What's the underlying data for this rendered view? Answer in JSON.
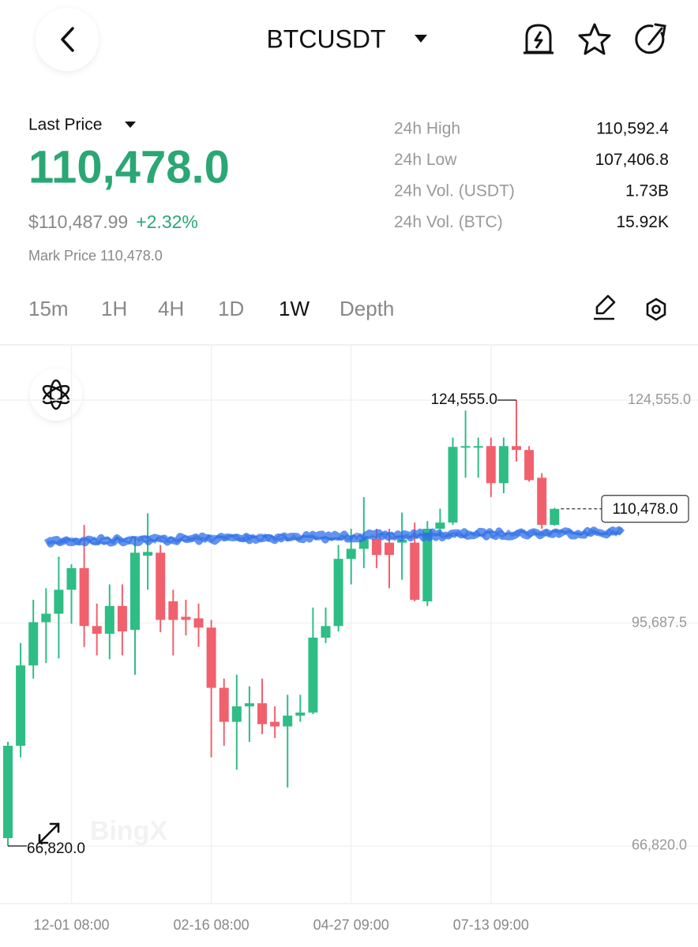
{
  "header": {
    "title": "BTCUSDT"
  },
  "ticker": {
    "price_label": "Last Price",
    "last_price": "110,478.0",
    "usd_price": "$110,487.99",
    "change": "+2.32%",
    "mark_price": "Mark Price 110,478.0",
    "stats": [
      {
        "label": "24h High",
        "value": "110,592.4"
      },
      {
        "label": "24h Low",
        "value": "107,406.8"
      },
      {
        "label": "24h Vol. (USDT)",
        "value": "1.73B"
      },
      {
        "label": "24h Vol. (BTC)",
        "value": "15.92K"
      }
    ]
  },
  "tabs": [
    "15m",
    "1H",
    "4H",
    "1D",
    "1W",
    "Depth"
  ],
  "watermark": "BingX",
  "chart_data": {
    "type": "candlestick",
    "categories": [
      null,
      null,
      null,
      null,
      null,
      "12-01 08:00",
      null,
      null,
      null,
      null,
      null,
      null,
      null,
      null,
      null,
      null,
      "02-16 08:00",
      null,
      null,
      null,
      null,
      null,
      null,
      null,
      null,
      null,
      null,
      "04-27 09:00",
      null,
      null,
      null,
      null,
      null,
      null,
      null,
      null,
      null,
      null,
      "07-13 09:00",
      null,
      null,
      null,
      null,
      null
    ],
    "open": [
      67844,
      79800,
      90200,
      95800,
      96900,
      100000,
      102800,
      95300,
      94300,
      97900,
      94800,
      104400,
      104800,
      98500,
      96500,
      96300,
      95100,
      87300,
      82900,
      84900,
      85300,
      82900,
      82300,
      83700,
      84100,
      93800,
      95300,
      104000,
      105300,
      106600,
      106100,
      106100,
      106100,
      98500,
      107900,
      108700,
      118400,
      118500,
      118600,
      113800,
      118600,
      118100,
      114500,
      108400
    ],
    "high": [
      80310,
      93100,
      98700,
      100200,
      104300,
      103300,
      108400,
      98200,
      100700,
      100700,
      106900,
      109900,
      105800,
      100000,
      98700,
      98200,
      96100,
      88500,
      89000,
      87500,
      88500,
      84900,
      86400,
      86400,
      97700,
      97700,
      105800,
      107900,
      112000,
      107900,
      107900,
      110000,
      108700,
      108900,
      110500,
      119700,
      123200,
      119700,
      119700,
      119700,
      124555,
      118600,
      115100,
      110600
    ],
    "low": [
      66820,
      78300,
      88500,
      90500,
      91100,
      95600,
      92600,
      91500,
      91000,
      91500,
      89000,
      100000,
      94500,
      91500,
      94100,
      92600,
      78300,
      79800,
      76700,
      80300,
      81300,
      80800,
      74400,
      82900,
      83900,
      93100,
      94600,
      100700,
      102800,
      102800,
      100200,
      101300,
      98500,
      97900,
      106900,
      108400,
      114500,
      114500,
      112000,
      112500,
      116600,
      114000,
      107900,
      108300
    ],
    "close": [
      79800,
      90200,
      95800,
      96900,
      100000,
      102800,
      95300,
      94300,
      97900,
      94600,
      104800,
      104900,
      96100,
      96100,
      96100,
      95100,
      87300,
      82900,
      84900,
      85300,
      82600,
      82300,
      83700,
      84100,
      93800,
      95300,
      104000,
      105300,
      106600,
      104500,
      104500,
      106500,
      98700,
      107900,
      108700,
      118500,
      118600,
      118600,
      113800,
      118600,
      118100,
      114200,
      108400,
      110478
    ],
    "up_color": "#2ebd85",
    "down_color": "#f0616d",
    "ylim": [
      59360,
      131710
    ],
    "yticks": [
      {
        "value": 124555,
        "label": "124,555.0"
      },
      {
        "value": 95687.5,
        "label": "95,687.5"
      },
      {
        "value": 66820,
        "label": "66,820.0"
      }
    ],
    "grid": true,
    "high_annotation": {
      "value": 124555,
      "label": "124,555.0"
    },
    "low_annotation": {
      "value": 66820,
      "label": "66,820.0"
    },
    "price_line": {
      "value": 110478,
      "label": "110,478.0"
    }
  }
}
